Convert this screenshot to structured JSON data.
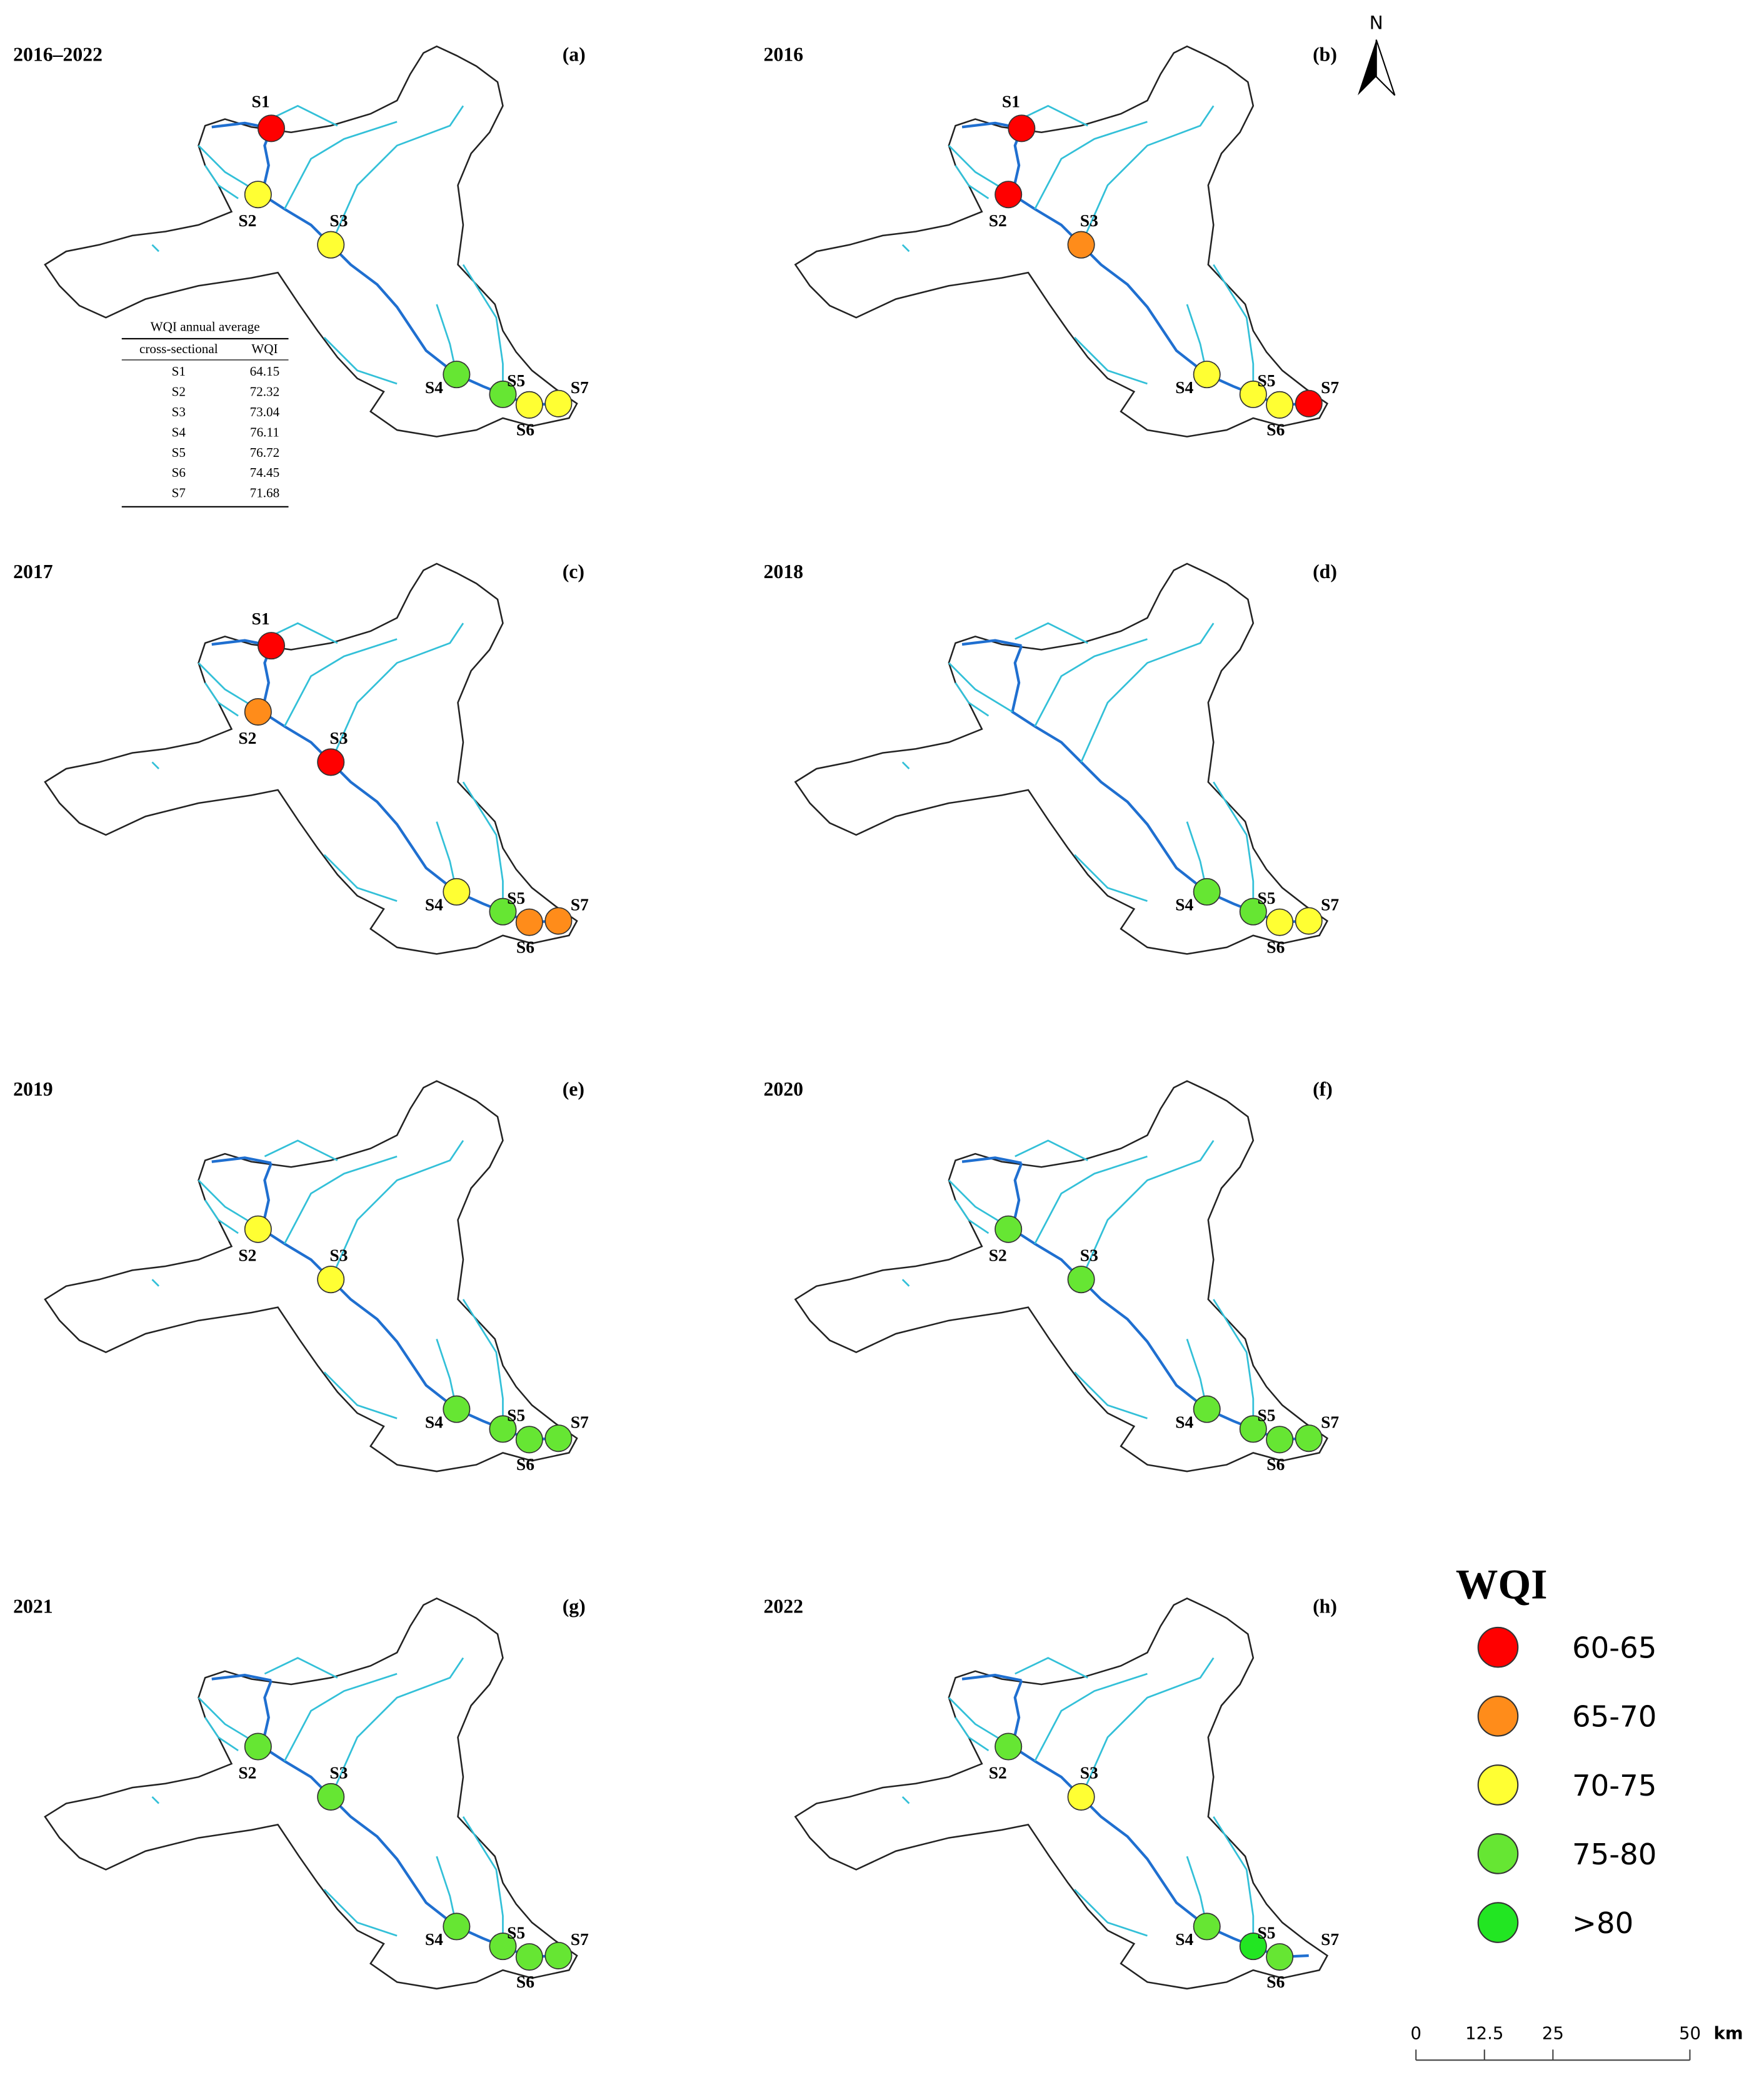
{
  "panels": [
    {
      "year": "2016–2022",
      "letter": "(a)",
      "stations": [
        {
          "label": "S1",
          "color": "#ff0000"
        },
        {
          "label": "S2",
          "color": "#ffff33"
        },
        {
          "label": "S3",
          "color": "#ffff33"
        },
        {
          "label": "S4",
          "color": "#66e633"
        },
        {
          "label": "S5",
          "color": "#66e633"
        },
        {
          "label": "S6",
          "color": "#ffff33"
        },
        {
          "label": "S7",
          "color": "#ffff33"
        }
      ]
    },
    {
      "year": "2016",
      "letter": "(b)",
      "stations": [
        {
          "label": "S1",
          "color": "#ff0000"
        },
        {
          "label": "S2",
          "color": "#ff0000"
        },
        {
          "label": "S3",
          "color": "#ff8c1a"
        },
        {
          "label": "S4",
          "color": "#ffff33"
        },
        {
          "label": "S5",
          "color": "#ffff33"
        },
        {
          "label": "S6",
          "color": "#ffff33"
        },
        {
          "label": "S7",
          "color": "#ff0000"
        }
      ]
    },
    {
      "year": "2017",
      "letter": "(c)",
      "stations": [
        {
          "label": "S1",
          "color": "#ff0000"
        },
        {
          "label": "S2",
          "color": "#ff8c1a"
        },
        {
          "label": "S3",
          "color": "#ff0000"
        },
        {
          "label": "S4",
          "color": "#ffff33"
        },
        {
          "label": "S5",
          "color": "#66e633"
        },
        {
          "label": "S6",
          "color": "#ff8c1a"
        },
        {
          "label": "S7",
          "color": "#ff8c1a"
        }
      ]
    },
    {
      "year": "2018",
      "letter": "(d)",
      "stations": [
        {
          "label": "S4",
          "color": "#66e633"
        },
        {
          "label": "S5",
          "color": "#66e633"
        },
        {
          "label": "S6",
          "color": "#ffff33"
        },
        {
          "label": "S7",
          "color": "#ffff33"
        }
      ]
    },
    {
      "year": "2019",
      "letter": "(e)",
      "stations": [
        {
          "label": "S2",
          "color": "#ffff33"
        },
        {
          "label": "S3",
          "color": "#ffff33"
        },
        {
          "label": "S4",
          "color": "#66e633"
        },
        {
          "label": "S5",
          "color": "#66e633"
        },
        {
          "label": "S6",
          "color": "#66e633"
        },
        {
          "label": "S7",
          "color": "#66e633"
        }
      ]
    },
    {
      "year": "2020",
      "letter": "(f)",
      "stations": [
        {
          "label": "S2",
          "color": "#66e633"
        },
        {
          "label": "S3",
          "color": "#66e633"
        },
        {
          "label": "S4",
          "color": "#66e633"
        },
        {
          "label": "S5",
          "color": "#66e633"
        },
        {
          "label": "S6",
          "color": "#66e633"
        },
        {
          "label": "S7",
          "color": "#66e633"
        }
      ]
    },
    {
      "year": "2021",
      "letter": "(g)",
      "stations": [
        {
          "label": "S2",
          "color": "#66e633"
        },
        {
          "label": "S3",
          "color": "#66e633"
        },
        {
          "label": "S4",
          "color": "#66e633"
        },
        {
          "label": "S5",
          "color": "#66e633"
        },
        {
          "label": "S6",
          "color": "#66e633"
        },
        {
          "label": "S7",
          "color": "#66e633"
        }
      ]
    },
    {
      "year": "2022",
      "letter": "(h)",
      "stations": [
        {
          "label": "S2",
          "color": "#66e633"
        },
        {
          "label": "S3",
          "color": "#ffff33"
        },
        {
          "label": "S4",
          "color": "#66e633"
        },
        {
          "label": "S5",
          "color": "#22e622"
        },
        {
          "label": "S6",
          "color": "#66e633"
        },
        {
          "label": "S7",
          "color": null
        }
      ]
    }
  ],
  "table": {
    "title": "WQI annual average",
    "header": [
      "cross-sectional",
      "WQI"
    ],
    "rows": [
      [
        "S1",
        64.15
      ],
      [
        "S2",
        72.32
      ],
      [
        "S3",
        73.04
      ],
      [
        "S4",
        76.11
      ],
      [
        "S5",
        76.72
      ],
      [
        "S6",
        74.45
      ],
      [
        "S7",
        71.68
      ]
    ]
  },
  "legend": {
    "title": "WQI",
    "classes": [
      {
        "label": "60-65",
        "color": "#ff0000"
      },
      {
        "label": "65-70",
        "color": "#ff8c1a"
      },
      {
        "label": "70-75",
        "color": "#ffff33"
      },
      {
        "label": "75-80",
        "color": "#66e633"
      },
      {
        "label": ">80",
        "color": "#22e622"
      }
    ]
  },
  "north": "N",
  "scale": {
    "ticks": [
      0,
      12.5,
      25,
      50
    ],
    "unit": "km"
  }
}
